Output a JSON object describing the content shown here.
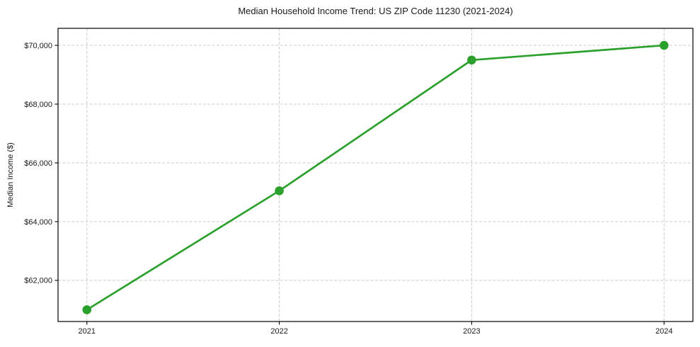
{
  "chart_data": {
    "type": "line",
    "title": "Median Household Income Trend: US ZIP Code 11230 (2021-2024)",
    "xlabel": "",
    "ylabel": "Median Income ($)",
    "x": [
      2021,
      2022,
      2023,
      2024
    ],
    "x_tick_labels": [
      "2021",
      "2022",
      "2023",
      "2024"
    ],
    "series": [
      {
        "values": [
          61000,
          65050,
          69500,
          70000
        ]
      }
    ],
    "y_ticks": [
      {
        "value": 62000,
        "label": "$62,000"
      },
      {
        "value": 64000,
        "label": "$64,000"
      },
      {
        "value": 66000,
        "label": "$66,000"
      },
      {
        "value": 68000,
        "label": "$68,000"
      },
      {
        "value": 70000,
        "label": "$70,000"
      }
    ],
    "ylim": [
      60600,
      70580
    ],
    "xlim": [
      2020.85,
      2024.15
    ],
    "grid": "dashed-both-axes",
    "legend": "none",
    "marker": "circle",
    "colors": {
      "line": "#2ca02c",
      "marker": "#2ca02c",
      "grid": "#cccccc",
      "spine": "#000000",
      "tick": "#000000",
      "text": "#1a1a1a",
      "background": "#ffffff"
    }
  }
}
